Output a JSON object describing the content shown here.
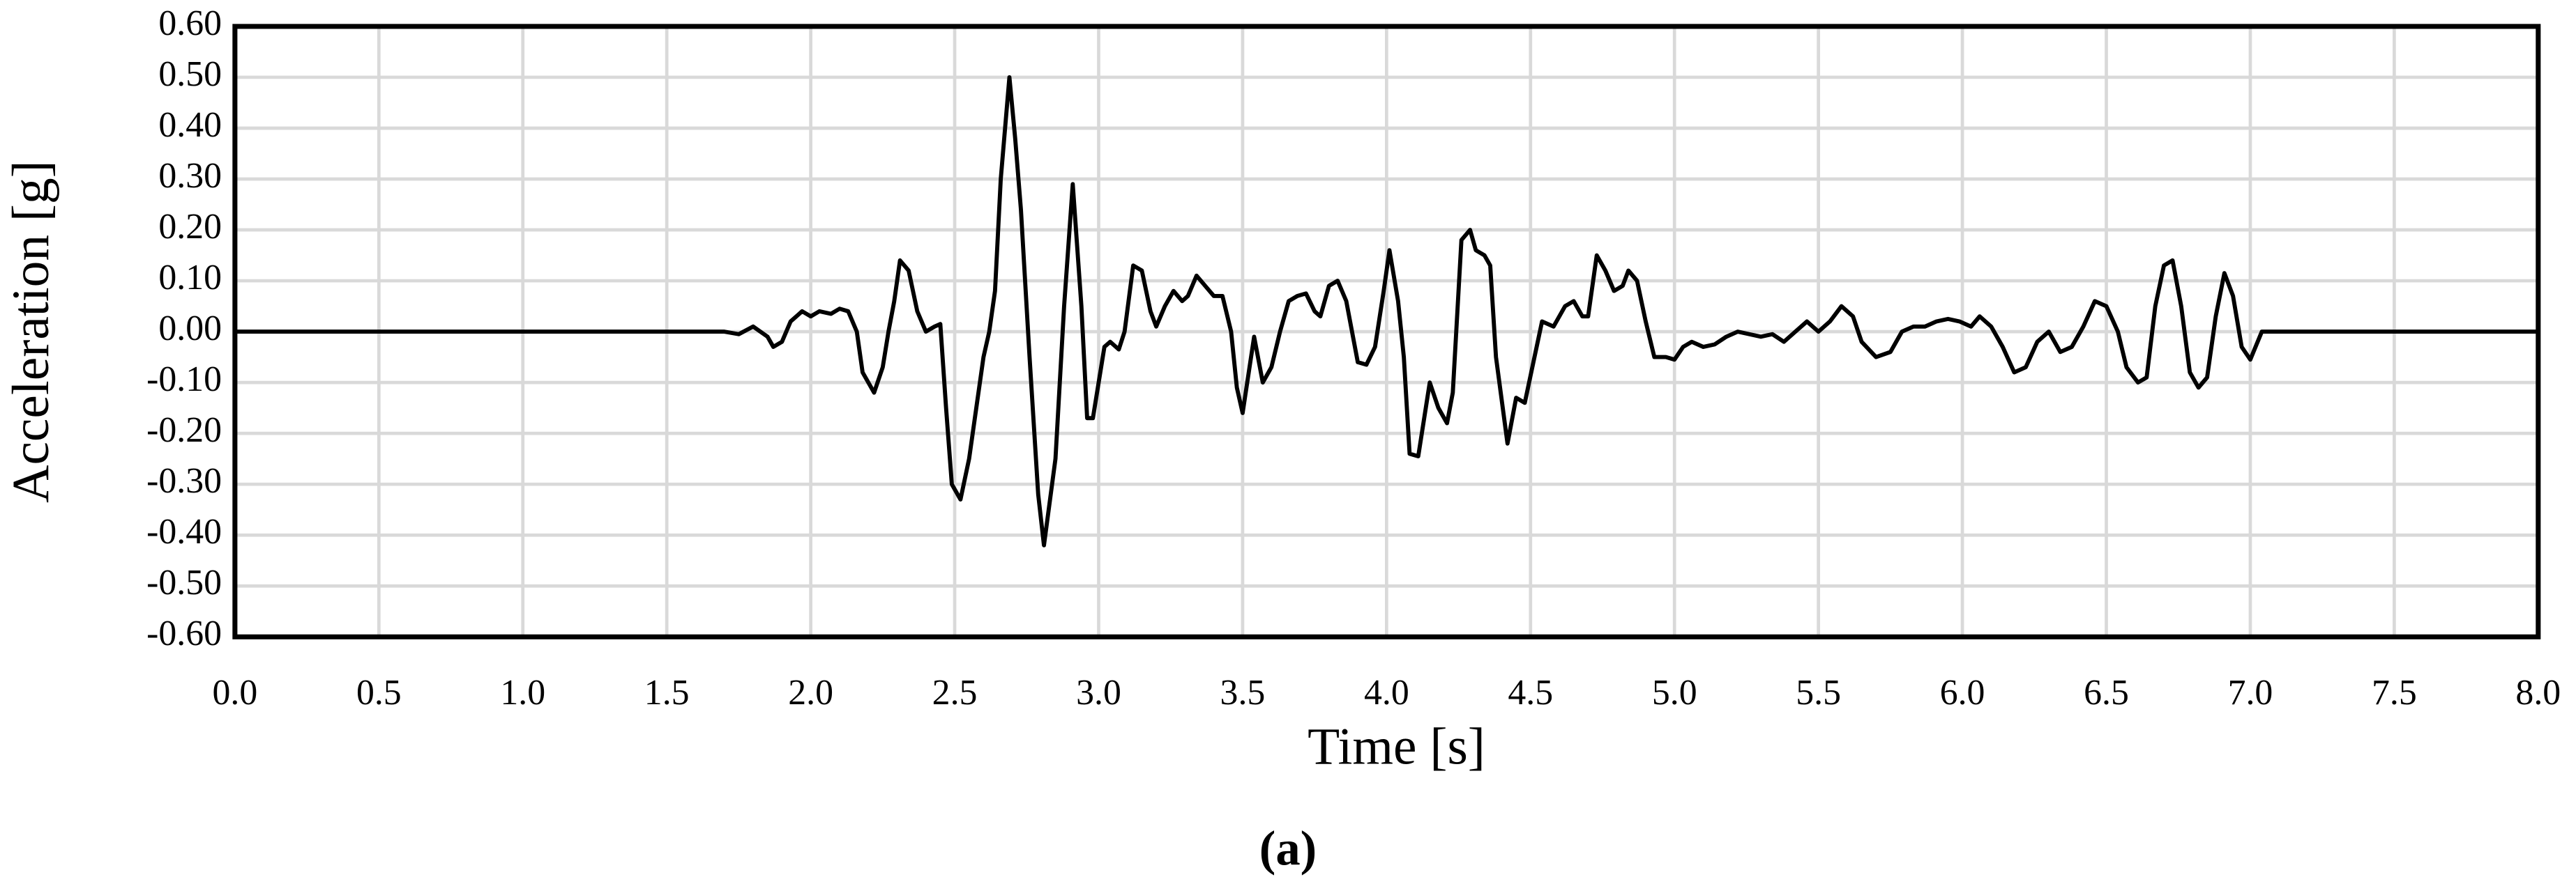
{
  "chart_data": {
    "type": "line",
    "x_label": "Time [s]",
    "y_label": "Acceleration [g]",
    "caption": "(a)",
    "color": "#000000",
    "grid": true,
    "xlim": [
      0,
      8
    ],
    "ylim": [
      -0.6,
      0.6
    ],
    "xticks": [
      {
        "value": 0,
        "label": "0.0"
      },
      {
        "value": 0.5,
        "label": "0.5"
      },
      {
        "value": 1,
        "label": "1.0"
      },
      {
        "value": 1.5,
        "label": "1.5"
      },
      {
        "value": 2,
        "label": "2.0"
      },
      {
        "value": 2.5,
        "label": "2.5"
      },
      {
        "value": 3,
        "label": "3.0"
      },
      {
        "value": 3.5,
        "label": "3.5"
      },
      {
        "value": 4,
        "label": "4.0"
      },
      {
        "value": 4.5,
        "label": "4.5"
      },
      {
        "value": 5,
        "label": "5.0"
      },
      {
        "value": 5.5,
        "label": "5.5"
      },
      {
        "value": 6,
        "label": "6.0"
      },
      {
        "value": 6.5,
        "label": "6.5"
      },
      {
        "value": 7,
        "label": "7.0"
      },
      {
        "value": 7.5,
        "label": "7.5"
      },
      {
        "value": 8,
        "label": "8.0"
      }
    ],
    "yticks": [
      {
        "value": -0.6,
        "label": "-0.60"
      },
      {
        "value": -0.5,
        "label": "-0.50"
      },
      {
        "value": -0.4,
        "label": "-0.40"
      },
      {
        "value": -0.3,
        "label": "-0.30"
      },
      {
        "value": -0.2,
        "label": "-0.20"
      },
      {
        "value": -0.1,
        "label": "-0.10"
      },
      {
        "value": 0,
        "label": "0.00"
      },
      {
        "value": 0.1,
        "label": "0.10"
      },
      {
        "value": 0.2,
        "label": "0.20"
      },
      {
        "value": 0.3,
        "label": "0.30"
      },
      {
        "value": 0.4,
        "label": "0.40"
      },
      {
        "value": 0.5,
        "label": "0.50"
      },
      {
        "value": 0.6,
        "label": "0.60"
      }
    ],
    "x": [
      0,
      1.7,
      1.75,
      1.8,
      1.85,
      1.87,
      1.9,
      1.93,
      1.97,
      2.0,
      2.03,
      2.07,
      2.1,
      2.13,
      2.16,
      2.18,
      2.22,
      2.25,
      2.27,
      2.29,
      2.31,
      2.34,
      2.37,
      2.4,
      2.43,
      2.45,
      2.47,
      2.49,
      2.52,
      2.55,
      2.58,
      2.6,
      2.62,
      2.64,
      2.66,
      2.69,
      2.71,
      2.73,
      2.76,
      2.79,
      2.81,
      2.85,
      2.88,
      2.91,
      2.94,
      2.96,
      2.98,
      3.02,
      3.04,
      3.07,
      3.09,
      3.12,
      3.15,
      3.18,
      3.2,
      3.23,
      3.26,
      3.29,
      3.31,
      3.34,
      3.37,
      3.4,
      3.43,
      3.46,
      3.48,
      3.5,
      3.54,
      3.57,
      3.6,
      3.63,
      3.66,
      3.69,
      3.72,
      3.75,
      3.77,
      3.8,
      3.83,
      3.86,
      3.88,
      3.9,
      3.93,
      3.96,
      3.99,
      4.01,
      4.04,
      4.06,
      4.08,
      4.11,
      4.15,
      4.18,
      4.21,
      4.23,
      4.26,
      4.29,
      4.31,
      4.34,
      4.36,
      4.38,
      4.42,
      4.45,
      4.48,
      4.51,
      4.54,
      4.58,
      4.62,
      4.65,
      4.68,
      4.7,
      4.73,
      4.76,
      4.79,
      4.82,
      4.84,
      4.87,
      4.9,
      4.93,
      4.97,
      5.0,
      5.03,
      5.06,
      5.1,
      5.14,
      5.18,
      5.22,
      5.26,
      5.3,
      5.34,
      5.38,
      5.42,
      5.46,
      5.5,
      5.54,
      5.58,
      5.62,
      5.65,
      5.7,
      5.75,
      5.79,
      5.83,
      5.87,
      5.91,
      5.95,
      5.99,
      6.03,
      6.06,
      6.1,
      6.14,
      6.18,
      6.22,
      6.26,
      6.3,
      6.34,
      6.38,
      6.42,
      6.46,
      6.5,
      6.54,
      6.57,
      6.61,
      6.64,
      6.67,
      6.7,
      6.73,
      6.76,
      6.79,
      6.82,
      6.85,
      6.88,
      6.91,
      6.94,
      6.97,
      7.0,
      7.04,
      8.0
    ],
    "values": [
      0,
      0,
      -0.005,
      0.01,
      -0.01,
      -0.03,
      -0.02,
      0.02,
      0.04,
      0.03,
      0.04,
      0.035,
      0.045,
      0.04,
      0.0,
      -0.08,
      -0.12,
      -0.07,
      0.0,
      0.06,
      0.14,
      0.12,
      0.04,
      0.0,
      0.01,
      0.015,
      -0.15,
      -0.3,
      -0.33,
      -0.25,
      -0.13,
      -0.05,
      0.0,
      0.08,
      0.3,
      0.5,
      0.38,
      0.24,
      -0.05,
      -0.32,
      -0.42,
      -0.25,
      0.05,
      0.29,
      0.05,
      -0.17,
      -0.17,
      -0.03,
      -0.02,
      -0.035,
      0.0,
      0.13,
      0.12,
      0.04,
      0.01,
      0.05,
      0.08,
      0.06,
      0.07,
      0.11,
      0.09,
      0.07,
      0.07,
      0.0,
      -0.11,
      -0.16,
      -0.01,
      -0.1,
      -0.07,
      0.0,
      0.06,
      0.07,
      0.075,
      0.04,
      0.03,
      0.09,
      0.1,
      0.06,
      0.0,
      -0.06,
      -0.065,
      -0.03,
      0.08,
      0.16,
      0.06,
      -0.05,
      -0.24,
      -0.245,
      -0.1,
      -0.15,
      -0.18,
      -0.12,
      0.18,
      0.2,
      0.16,
      0.15,
      0.13,
      -0.05,
      -0.22,
      -0.13,
      -0.14,
      -0.06,
      0.02,
      0.01,
      0.05,
      0.06,
      0.03,
      0.03,
      0.15,
      0.12,
      0.08,
      0.09,
      0.12,
      0.1,
      0.02,
      -0.05,
      -0.05,
      -0.055,
      -0.03,
      -0.02,
      -0.03,
      -0.025,
      -0.01,
      0.0,
      -0.005,
      -0.01,
      -0.005,
      -0.02,
      0.0,
      0.02,
      0.0,
      0.02,
      0.05,
      0.03,
      -0.02,
      -0.05,
      -0.04,
      0.0,
      0.01,
      0.01,
      0.02,
      0.025,
      0.02,
      0.01,
      0.03,
      0.01,
      -0.03,
      -0.08,
      -0.07,
      -0.02,
      0.0,
      -0.04,
      -0.03,
      0.01,
      0.06,
      0.05,
      0.0,
      -0.07,
      -0.1,
      -0.09,
      0.05,
      0.13,
      0.14,
      0.05,
      -0.08,
      -0.11,
      -0.09,
      0.03,
      0.115,
      0.07,
      -0.03,
      -0.055,
      0.0,
      0.0
    ]
  }
}
